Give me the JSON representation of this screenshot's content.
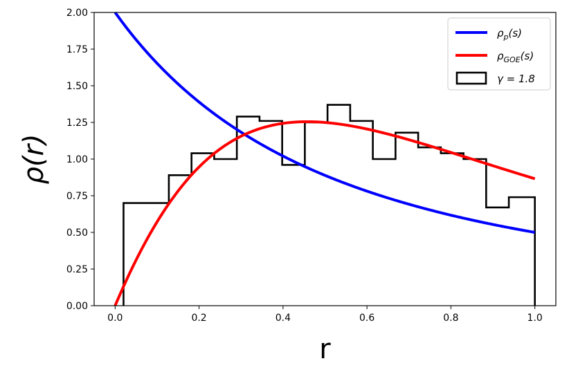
{
  "chart_data": {
    "type": "line",
    "title": "",
    "xlabel": "r",
    "ylabel": "ρ(r)",
    "xlim": [
      -0.05,
      1.05
    ],
    "ylim": [
      0.0,
      2.0
    ],
    "x_ticks": [
      "0.0",
      "0.2",
      "0.4",
      "0.6",
      "0.8",
      "1.0"
    ],
    "y_ticks": [
      "0.00",
      "0.25",
      "0.50",
      "0.75",
      "1.00",
      "1.25",
      "1.50",
      "1.75",
      "2.00"
    ],
    "grid": false,
    "legend_position": "top-right",
    "series": [
      {
        "name": "ρp(s)",
        "type": "line",
        "color": "#0000ff",
        "formula": "2/(1+r)^2"
      },
      {
        "name": "ρGOE(s)",
        "type": "line",
        "color": "#ff0000",
        "formula": "(27/4)(r+r^2)/(1+r+r^2)^(5/2)"
      },
      {
        "name": "γ = 1.8",
        "type": "step-histogram",
        "color": "#000000",
        "bin_edges": [
          0.02,
          0.128,
          0.182,
          0.236,
          0.29,
          0.344,
          0.398,
          0.452,
          0.506,
          0.56,
          0.614,
          0.668,
          0.722,
          0.776,
          0.83,
          0.884,
          0.938,
          1.0
        ],
        "values": [
          0.7,
          0.89,
          1.04,
          1.0,
          1.29,
          1.26,
          0.96,
          1.25,
          1.37,
          1.26,
          1.0,
          1.18,
          1.08,
          1.04,
          1.0,
          0.67,
          0.74
        ]
      }
    ],
    "legend": [
      {
        "label_main": "ρ",
        "label_sub": "p",
        "label_rest": "(s)",
        "color": "#0000ff",
        "kind": "line"
      },
      {
        "label_main": "ρ",
        "label_sub": "GOE",
        "label_rest": "(s)",
        "color": "#ff0000",
        "kind": "line"
      },
      {
        "label_main": "γ = 1.8",
        "label_sub": "",
        "label_rest": "",
        "color": "#000000",
        "kind": "box"
      }
    ]
  }
}
